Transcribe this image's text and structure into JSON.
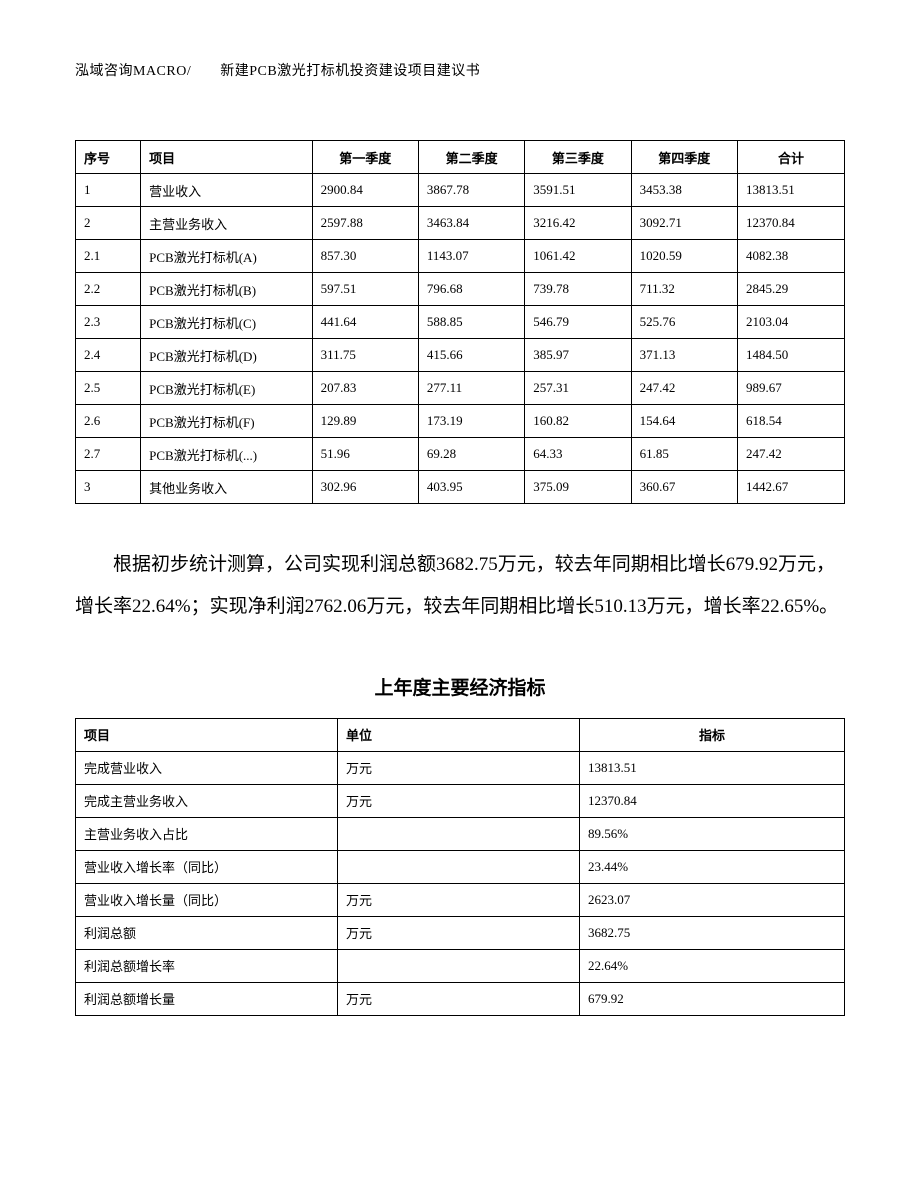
{
  "header": "泓域咨询MACRO/　　新建PCB激光打标机投资建设项目建议书",
  "table1": {
    "headers": [
      "序号",
      "项目",
      "第一季度",
      "第二季度",
      "第三季度",
      "第四季度",
      "合计"
    ],
    "rows": [
      [
        "1",
        "营业收入",
        "2900.84",
        "3867.78",
        "3591.51",
        "3453.38",
        "13813.51"
      ],
      [
        "2",
        "主营业务收入",
        "2597.88",
        "3463.84",
        "3216.42",
        "3092.71",
        "12370.84"
      ],
      [
        "2.1",
        "PCB激光打标机(A)",
        "857.30",
        "1143.07",
        "1061.42",
        "1020.59",
        "4082.38"
      ],
      [
        "2.2",
        "PCB激光打标机(B)",
        "597.51",
        "796.68",
        "739.78",
        "711.32",
        "2845.29"
      ],
      [
        "2.3",
        "PCB激光打标机(C)",
        "441.64",
        "588.85",
        "546.79",
        "525.76",
        "2103.04"
      ],
      [
        "2.4",
        "PCB激光打标机(D)",
        "311.75",
        "415.66",
        "385.97",
        "371.13",
        "1484.50"
      ],
      [
        "2.5",
        "PCB激光打标机(E)",
        "207.83",
        "277.11",
        "257.31",
        "247.42",
        "989.67"
      ],
      [
        "2.6",
        "PCB激光打标机(F)",
        "129.89",
        "173.19",
        "160.82",
        "154.64",
        "618.54"
      ],
      [
        "2.7",
        "PCB激光打标机(...)",
        "51.96",
        "69.28",
        "64.33",
        "61.85",
        "247.42"
      ],
      [
        "3",
        "其他业务收入",
        "302.96",
        "403.95",
        "375.09",
        "360.67",
        "1442.67"
      ]
    ]
  },
  "paragraph": "根据初步统计测算，公司实现利润总额3682.75万元，较去年同期相比增长679.92万元，增长率22.64%；实现净利润2762.06万元，较去年同期相比增长510.13万元，增长率22.65%。",
  "section_title": "上年度主要经济指标",
  "table2": {
    "headers": [
      "项目",
      "单位",
      "指标"
    ],
    "rows": [
      [
        "完成营业收入",
        "万元",
        "13813.51"
      ],
      [
        "完成主营业务收入",
        "万元",
        "12370.84"
      ],
      [
        "主营业务收入占比",
        "",
        "89.56%"
      ],
      [
        "营业收入增长率（同比）",
        "",
        "23.44%"
      ],
      [
        "营业收入增长量（同比）",
        "万元",
        "2623.07"
      ],
      [
        "利润总额",
        "万元",
        "3682.75"
      ],
      [
        "利润总额增长率",
        "",
        "22.64%"
      ],
      [
        "利润总额增长量",
        "万元",
        "679.92"
      ]
    ]
  }
}
